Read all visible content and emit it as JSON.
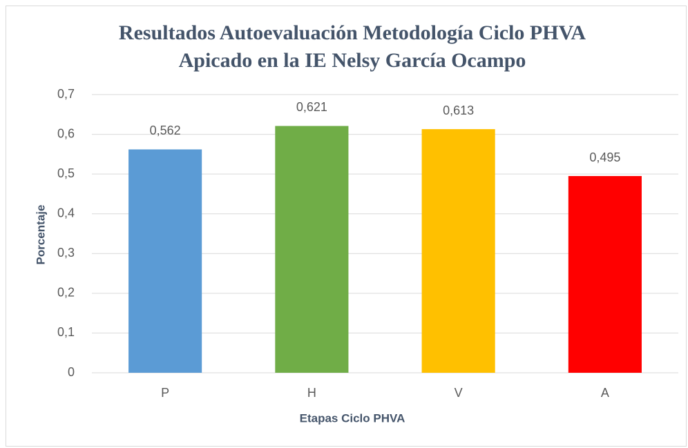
{
  "chart_data": {
    "type": "bar",
    "title": [
      "Resultados Autoevaluación Metodología Ciclo PHVA",
      "Apicado en la IE Nelsy García Ocampo"
    ],
    "x_label": "Etapas Ciclo PHVA",
    "y_label": "Porcentaje",
    "categories": [
      "P",
      "H",
      "V",
      "A"
    ],
    "values": [
      0.562,
      0.621,
      0.613,
      0.495
    ],
    "value_labels": [
      "0,562",
      "0,621",
      "0,613",
      "0,495"
    ],
    "colors": [
      "#5b9bd5",
      "#70ad47",
      "#ffc000",
      "#ff0000"
    ],
    "ylim": [
      0,
      0.7
    ],
    "yticks": [
      0,
      {
        "value": 0.1,
        "label": "0,1"
      },
      {
        "value": 0.2,
        "label": "0,2"
      },
      {
        "value": 0.3,
        "label": "0,3"
      },
      {
        "value": 0.4,
        "label": "0,4"
      },
      {
        "value": 0.5,
        "label": "0,5"
      },
      {
        "value": 0.6,
        "label": "0,6"
      },
      {
        "value": 0.7,
        "label": "0,7"
      }
    ],
    "grid": true
  }
}
